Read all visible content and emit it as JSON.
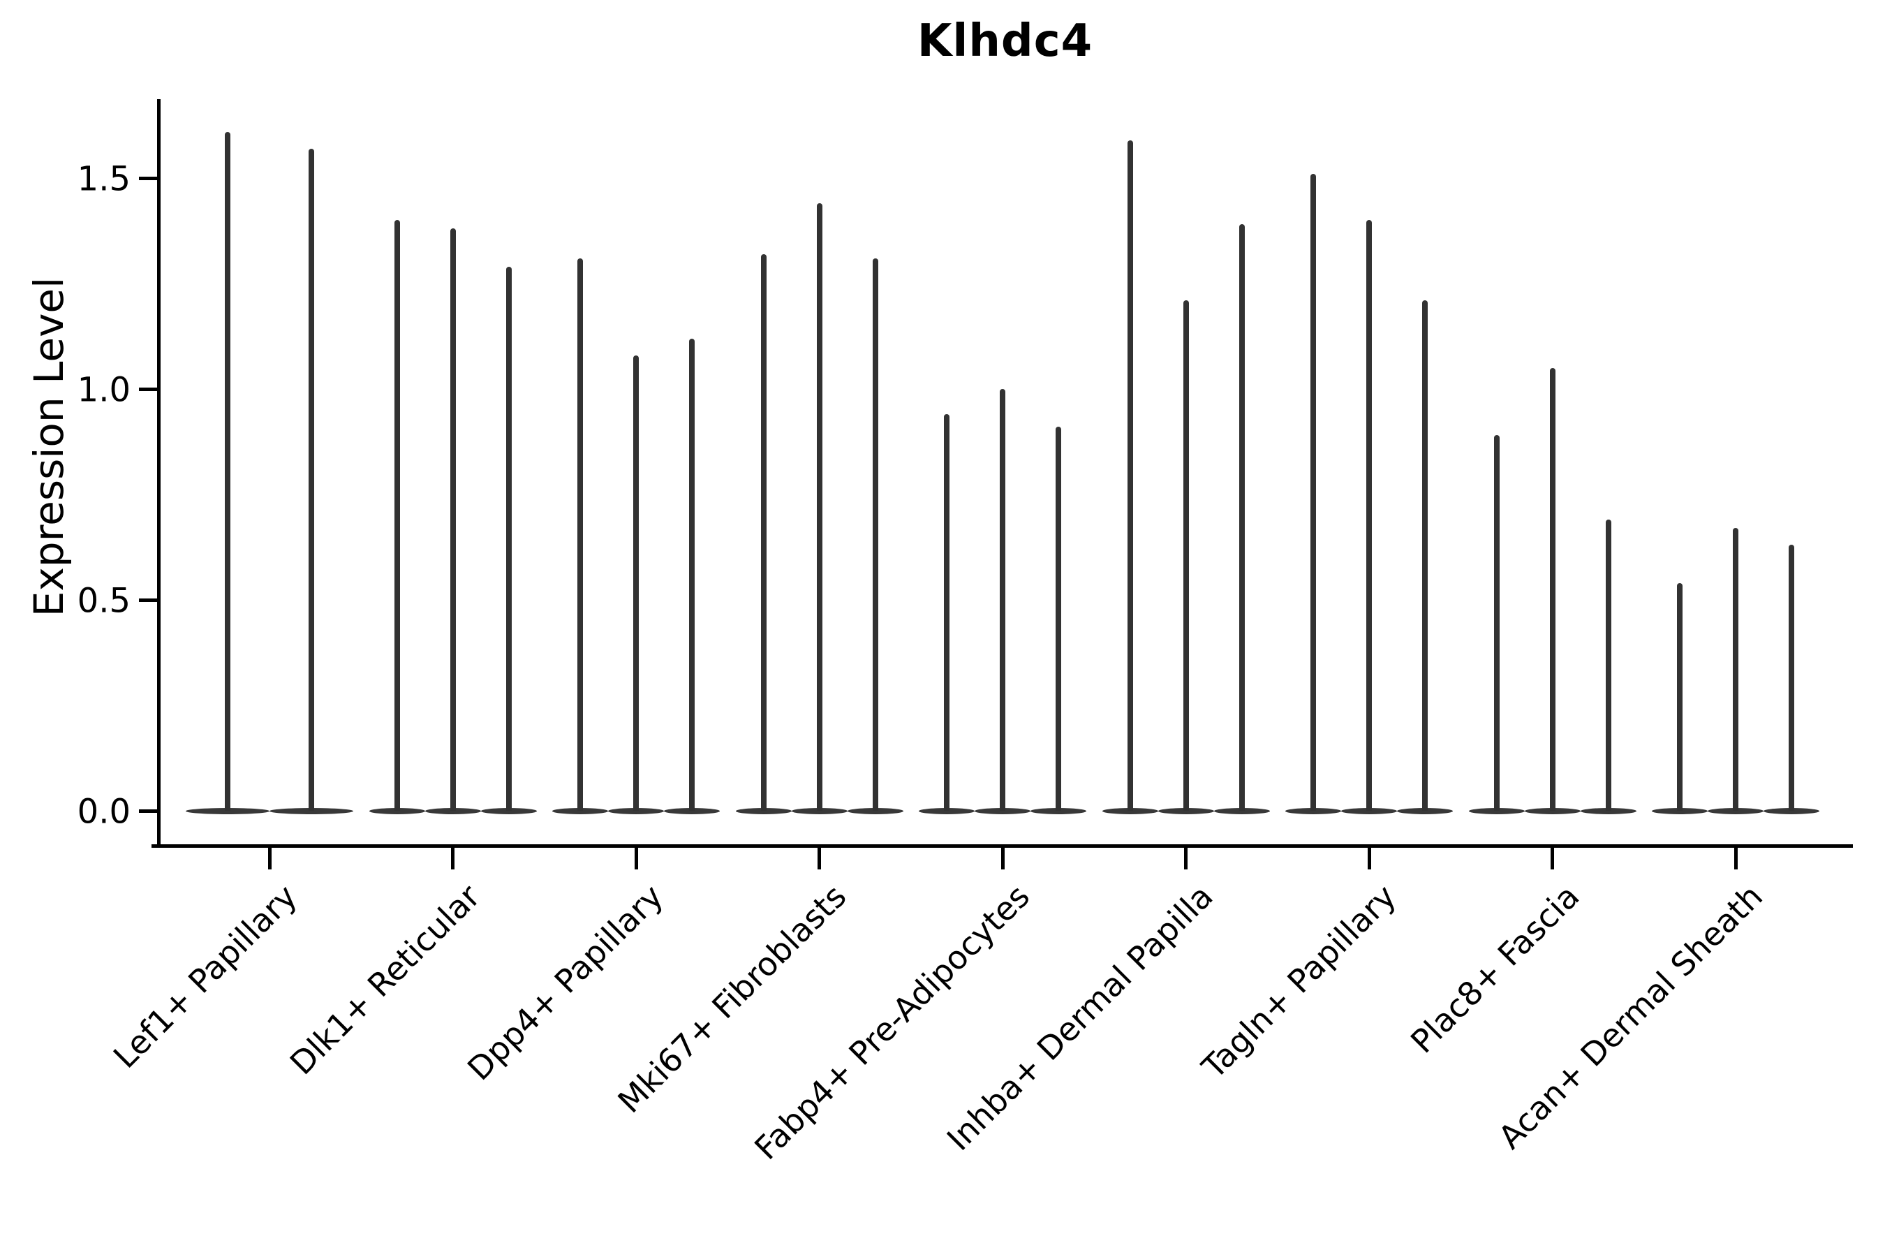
{
  "chart_data": {
    "type": "violin",
    "title": "Klhdc4",
    "xlabel": "",
    "ylabel": "Expression Level",
    "yticks": [
      "0.0",
      "0.5",
      "1.0",
      "1.5"
    ],
    "ytick_values": [
      0.0,
      0.5,
      1.0,
      1.5
    ],
    "ylim": [
      -0.08,
      1.69
    ],
    "grid": "off",
    "legend": "none",
    "distribution_shape": "nearly all cells at expression 0 (flat wide base), with a needle-thin tail rising to the peak value listed for each violin",
    "categories": [
      "Lef1+ Papillary",
      "Dlk1+ Reticular",
      "Dpp4+ Papillary",
      "Mki67+ Fibroblasts",
      "Fabp4+ Pre-Adipocytes",
      "Inhba+ Dermal Papilla",
      "Tagln+ Papillary",
      "Plac8+ Fascia",
      "Acan+ Dermal Sheath"
    ],
    "series": [
      {
        "category": "Lef1+ Papillary",
        "violin_peak_values": [
          1.61,
          1.57
        ]
      },
      {
        "category": "Dlk1+ Reticular",
        "violin_peak_values": [
          1.4,
          1.38,
          1.29
        ]
      },
      {
        "category": "Dpp4+ Papillary",
        "violin_peak_values": [
          1.31,
          1.08,
          1.12
        ]
      },
      {
        "category": "Mki67+ Fibroblasts",
        "violin_peak_values": [
          1.32,
          1.44,
          1.31
        ]
      },
      {
        "category": "Fabp4+ Pre-Adipocytes",
        "violin_peak_values": [
          0.94,
          1.0,
          0.91
        ]
      },
      {
        "category": "Inhba+ Dermal Papilla",
        "violin_peak_values": [
          1.59,
          1.21,
          1.39
        ]
      },
      {
        "category": "Tagln+ Papillary",
        "violin_peak_values": [
          1.51,
          1.4,
          1.21
        ]
      },
      {
        "category": "Plac8+ Fascia",
        "violin_peak_values": [
          0.89,
          1.05,
          0.69
        ]
      },
      {
        "category": "Acan+ Dermal Sheath",
        "violin_peak_values": [
          0.54,
          0.67,
          0.63
        ]
      }
    ],
    "colors": {
      "violin": "#323232",
      "axis": "#000000",
      "text": "#000000",
      "background": "#ffffff"
    }
  }
}
